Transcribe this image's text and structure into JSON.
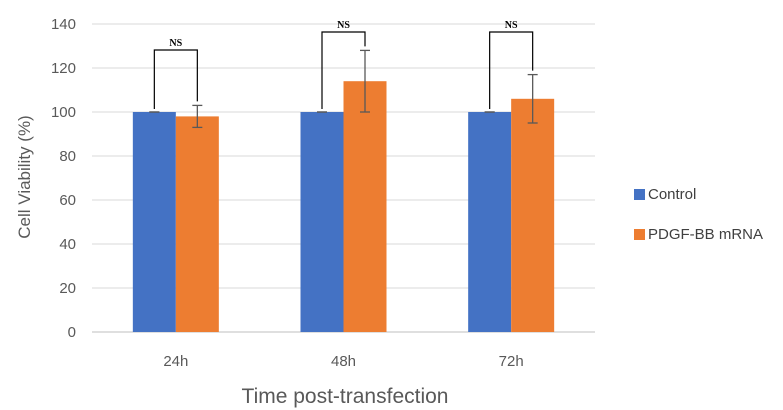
{
  "chart_data": {
    "type": "bar",
    "xlabel": "Time post-transfection",
    "ylabel": "Cell Viability (%)",
    "ylim": [
      0,
      140
    ],
    "yticks": [
      "0",
      "20",
      "40",
      "60",
      "80",
      "100",
      "120",
      "140"
    ],
    "categories": [
      "24h",
      "48h",
      "72h"
    ],
    "series": [
      {
        "name": "Control",
        "color": "#4472C4",
        "values": [
          100,
          100,
          100
        ],
        "errors": [
          0,
          0,
          0
        ]
      },
      {
        "name": "PDGF-BB mRNA",
        "color": "#ED7D31",
        "values": [
          98,
          114,
          106
        ],
        "errors": [
          5,
          14,
          11
        ]
      }
    ],
    "annotations": [
      "NS",
      "NS",
      "NS"
    ],
    "grid": true,
    "legend_position": "right"
  }
}
